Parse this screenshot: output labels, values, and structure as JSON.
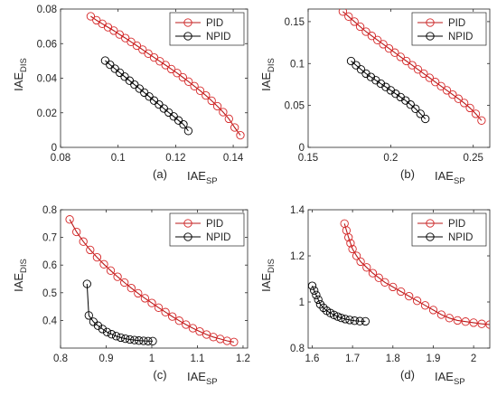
{
  "colors": {
    "pid": "#d62728",
    "pid_line": "#b81a1a",
    "npid": "#000000",
    "axis": "#262626"
  },
  "chart_data": [
    {
      "type": "line",
      "label": "(a)",
      "xlabel": "IAE",
      "xlabel_sub": "SP",
      "ylabel": "IAE",
      "ylabel_sub": "DIS",
      "xlim": [
        0.08,
        0.145
      ],
      "ylim": [
        0,
        0.08
      ],
      "xticks": [
        0.08,
        0.1,
        0.12,
        0.14
      ],
      "xtick_labels": [
        "0.08",
        "0.1",
        "0.12",
        "0.14"
      ],
      "yticks": [
        0,
        0.02,
        0.04,
        0.06,
        0.08
      ],
      "ytick_labels": [
        "0",
        "0.02",
        "0.04",
        "0.06",
        "0.08"
      ],
      "legend": "top-right",
      "series": [
        {
          "name": "PID",
          "x": [
            0.0905,
            0.0925,
            0.0945,
            0.0965,
            0.0985,
            0.1005,
            0.1025,
            0.1045,
            0.1065,
            0.1085,
            0.1105,
            0.1125,
            0.1145,
            0.1165,
            0.1185,
            0.1205,
            0.1225,
            0.1245,
            0.1265,
            0.1285,
            0.1305,
            0.1325,
            0.1345,
            0.1365,
            0.1385,
            0.1405,
            0.1425
          ],
          "y": [
            0.0758,
            0.0735,
            0.0715,
            0.0695,
            0.0675,
            0.0653,
            0.0632,
            0.061,
            0.0588,
            0.0565,
            0.0542,
            0.052,
            0.0498,
            0.0476,
            0.0453,
            0.043,
            0.0405,
            0.038,
            0.0354,
            0.0328,
            0.03,
            0.027,
            0.0238,
            0.0204,
            0.0165,
            0.0115,
            0.007
          ]
        },
        {
          "name": "NPID",
          "x": [
            0.0955,
            0.0972,
            0.0989,
            0.1006,
            0.1023,
            0.104,
            0.1057,
            0.1074,
            0.1091,
            0.1108,
            0.1125,
            0.1142,
            0.1159,
            0.1176,
            0.1193,
            0.121,
            0.1227,
            0.1244
          ],
          "y": [
            0.0502,
            0.0478,
            0.0455,
            0.0432,
            0.0409,
            0.0386,
            0.0363,
            0.034,
            0.0317,
            0.0294,
            0.0271,
            0.0248,
            0.0225,
            0.0202,
            0.0179,
            0.0156,
            0.0133,
            0.0095
          ]
        }
      ]
    },
    {
      "type": "line",
      "label": "(b)",
      "xlabel": "IAE",
      "xlabel_sub": "SP",
      "ylabel": "IAE",
      "ylabel_sub": "DIS",
      "xlim": [
        0.15,
        0.26
      ],
      "ylim": [
        0,
        0.165
      ],
      "xticks": [
        0.15,
        0.2,
        0.25
      ],
      "xtick_labels": [
        "0.15",
        "0.2",
        "0.25"
      ],
      "yticks": [
        0,
        0.05,
        0.1,
        0.15
      ],
      "ytick_labels": [
        "0",
        "0.05",
        "0.1",
        "0.15"
      ],
      "legend": "top-right",
      "series": [
        {
          "name": "PID",
          "x": [
            0.171,
            0.1745,
            0.178,
            0.1815,
            0.185,
            0.1885,
            0.192,
            0.1955,
            0.199,
            0.2025,
            0.206,
            0.2095,
            0.213,
            0.2165,
            0.22,
            0.2235,
            0.227,
            0.2305,
            0.234,
            0.2375,
            0.241,
            0.2445,
            0.248,
            0.2515,
            0.255
          ],
          "y": [
            0.162,
            0.156,
            0.15,
            0.144,
            0.138,
            0.133,
            0.128,
            0.123,
            0.118,
            0.113,
            0.108,
            0.103,
            0.098,
            0.093,
            0.088,
            0.083,
            0.078,
            0.073,
            0.068,
            0.063,
            0.058,
            0.053,
            0.047,
            0.04,
            0.032
          ]
        },
        {
          "name": "NPID",
          "x": [
            0.176,
            0.179,
            0.182,
            0.185,
            0.188,
            0.191,
            0.194,
            0.197,
            0.2,
            0.203,
            0.206,
            0.209,
            0.212,
            0.215,
            0.218,
            0.221
          ],
          "y": [
            0.103,
            0.098,
            0.093,
            0.088,
            0.084,
            0.08,
            0.076,
            0.072,
            0.068,
            0.064,
            0.06,
            0.056,
            0.051,
            0.046,
            0.04,
            0.034
          ]
        }
      ]
    },
    {
      "type": "line",
      "label": "(c)",
      "xlabel": "IAE",
      "xlabel_sub": "SP",
      "ylabel": "IAE",
      "ylabel_sub": "DIS",
      "xlim": [
        0.8,
        1.21
      ],
      "ylim": [
        0.3,
        0.8
      ],
      "xticks": [
        0.8,
        0.9,
        1.0,
        1.1,
        1.2
      ],
      "xtick_labels": [
        "0.8",
        "0.9",
        "1",
        "1.1",
        "1.2"
      ],
      "yticks": [
        0.4,
        0.5,
        0.6,
        0.7,
        0.8
      ],
      "ytick_labels": [
        "0.4",
        "0.5",
        "0.6",
        "0.7",
        "0.8"
      ],
      "legend": "top-right",
      "series": [
        {
          "name": "PID",
          "x": [
            0.82,
            0.835,
            0.85,
            0.865,
            0.88,
            0.895,
            0.91,
            0.925,
            0.94,
            0.955,
            0.97,
            0.985,
            1.0,
            1.015,
            1.03,
            1.045,
            1.06,
            1.075,
            1.09,
            1.105,
            1.12,
            1.135,
            1.15,
            1.165,
            1.18
          ],
          "y": [
            0.765,
            0.72,
            0.685,
            0.655,
            0.628,
            0.603,
            0.58,
            0.558,
            0.537,
            0.517,
            0.498,
            0.48,
            0.463,
            0.446,
            0.43,
            0.414,
            0.399,
            0.385,
            0.372,
            0.36,
            0.349,
            0.34,
            0.333,
            0.326,
            0.322
          ]
        },
        {
          "name": "NPID",
          "x": [
            0.858,
            0.862,
            0.872,
            0.882,
            0.892,
            0.902,
            0.912,
            0.922,
            0.932,
            0.942,
            0.952,
            0.962,
            0.972,
            0.982,
            0.992,
            1.002
          ],
          "y": [
            0.532,
            0.418,
            0.395,
            0.381,
            0.369,
            0.358,
            0.35,
            0.343,
            0.338,
            0.334,
            0.331,
            0.329,
            0.327,
            0.326,
            0.325,
            0.325
          ]
        }
      ]
    },
    {
      "type": "line",
      "label": "(d)",
      "xlabel": "IAE",
      "xlabel_sub": "SP",
      "ylabel": "IAE",
      "ylabel_sub": "DIS",
      "xlim": [
        1.59,
        2.04
      ],
      "ylim": [
        0.8,
        1.4
      ],
      "xticks": [
        1.6,
        1.7,
        1.8,
        1.9,
        2.0
      ],
      "xtick_labels": [
        "1.6",
        "1.7",
        "1.8",
        "1.9",
        "2"
      ],
      "yticks": [
        0.8,
        1.0,
        1.2,
        1.4
      ],
      "ytick_labels": [
        "0.8",
        "1",
        "1.2",
        "1.4"
      ],
      "legend": "top-right",
      "series": [
        {
          "name": "PID",
          "x": [
            1.68,
            1.685,
            1.69,
            1.695,
            1.7,
            1.71,
            1.72,
            1.735,
            1.75,
            1.765,
            1.78,
            1.8,
            1.82,
            1.84,
            1.86,
            1.88,
            1.9,
            1.92,
            1.94,
            1.96,
            1.98,
            2.0,
            2.02,
            2.04
          ],
          "y": [
            1.34,
            1.31,
            1.28,
            1.255,
            1.23,
            1.2,
            1.175,
            1.15,
            1.125,
            1.105,
            1.085,
            1.065,
            1.045,
            1.025,
            1.005,
            0.985,
            0.965,
            0.945,
            0.93,
            0.92,
            0.915,
            0.91,
            0.905,
            0.902
          ]
        },
        {
          "name": "NPID",
          "x": [
            1.6,
            1.605,
            1.61,
            1.615,
            1.62,
            1.628,
            1.636,
            1.645,
            1.654,
            1.663,
            1.672,
            1.682,
            1.693,
            1.705,
            1.718,
            1.732
          ],
          "y": [
            1.07,
            1.05,
            1.03,
            1.01,
            0.99,
            0.975,
            0.962,
            0.952,
            0.944,
            0.937,
            0.931,
            0.926,
            0.922,
            0.919,
            0.917,
            0.916
          ]
        }
      ]
    }
  ]
}
